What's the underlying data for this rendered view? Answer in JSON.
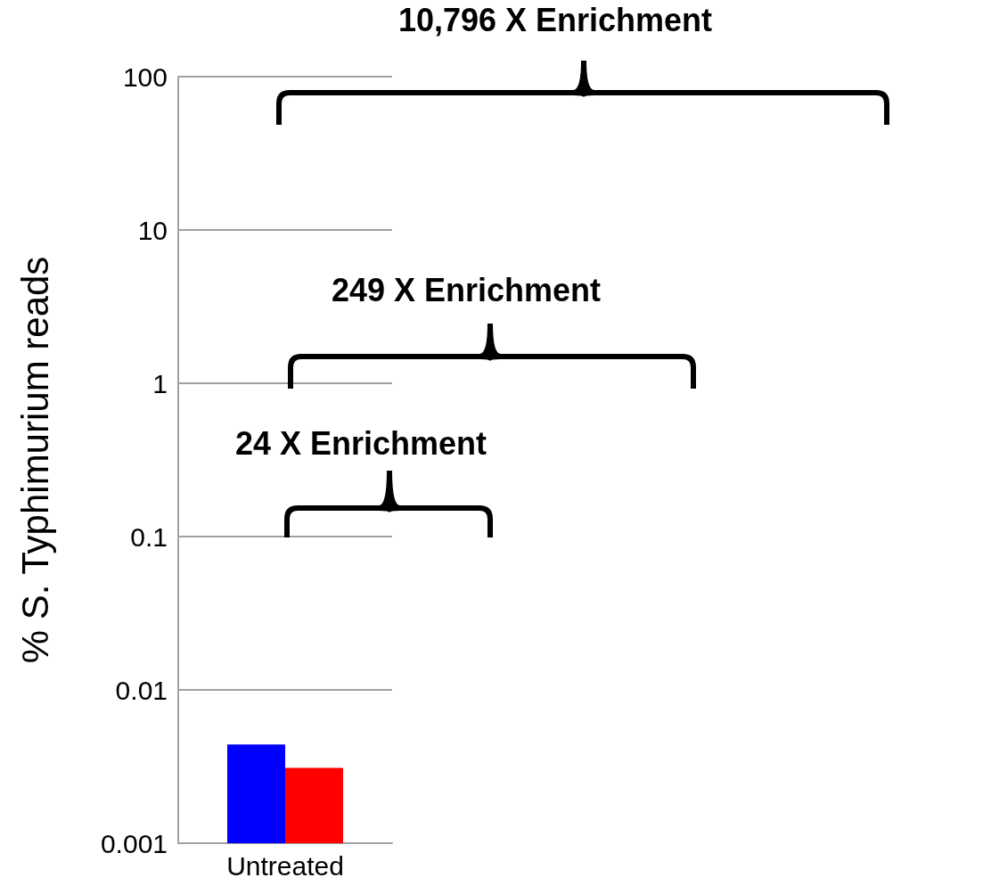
{
  "chart_data": {
    "type": "bar",
    "ylabel": "% S. Typhimurium reads",
    "categories": [
      "Untreated"
    ],
    "series": [
      {
        "color": "#0000ff",
        "values": [
          0.0044
        ]
      },
      {
        "color": "#ff0000",
        "values": [
          0.0031
        ]
      }
    ],
    "log": "y",
    "ylim": [
      0.001,
      100
    ],
    "yticks": [
      0.001,
      0.01,
      0.1,
      1,
      10,
      100
    ],
    "grid": "y",
    "annotations": [
      "10,796 X Enrichment",
      "249 X Enrichment",
      "24 X Enrichment"
    ]
  }
}
